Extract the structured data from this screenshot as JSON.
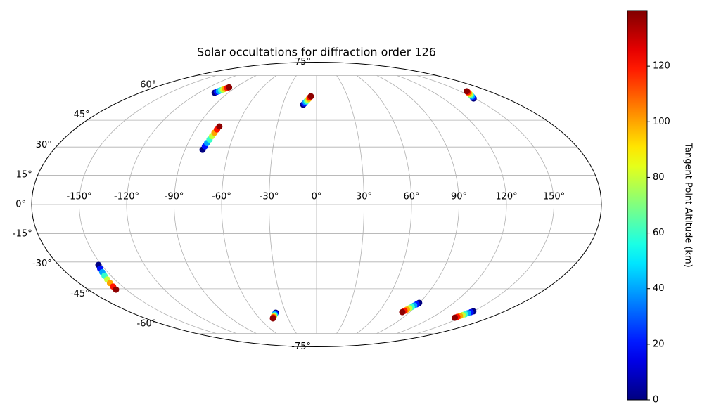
{
  "chart_data": {
    "type": "mollweide-scatter",
    "title": "Solar occultations for diffraction order 126",
    "xlim": [
      -180,
      180
    ],
    "ylim": [
      -90,
      90
    ],
    "xticks": [
      {
        "value": -150,
        "label": "-150°"
      },
      {
        "value": -120,
        "label": "-120°"
      },
      {
        "value": -90,
        "label": "-90°"
      },
      {
        "value": -60,
        "label": "-60°"
      },
      {
        "value": -30,
        "label": "-30°"
      },
      {
        "value": 0,
        "label": "0°"
      },
      {
        "value": 30,
        "label": "30°"
      },
      {
        "value": 60,
        "label": "60°"
      },
      {
        "value": 90,
        "label": "90°"
      },
      {
        "value": 120,
        "label": "120°"
      },
      {
        "value": 150,
        "label": "150°"
      }
    ],
    "yticks": [
      {
        "value": -75,
        "label": "-75°"
      },
      {
        "value": -60,
        "label": "-60°"
      },
      {
        "value": -45,
        "label": "-45°"
      },
      {
        "value": -30,
        "label": "-30°"
      },
      {
        "value": -15,
        "label": "-15°"
      },
      {
        "value": 0,
        "label": "0°"
      },
      {
        "value": 15,
        "label": "15°"
      },
      {
        "value": 30,
        "label": "30°"
      },
      {
        "value": 45,
        "label": "45°"
      },
      {
        "value": 60,
        "label": "60°"
      },
      {
        "value": 75,
        "label": "75°"
      }
    ],
    "grid": true,
    "colormap": "jet",
    "colorbar": {
      "label": "Tangent Point Altitude (km)",
      "clim": [
        0,
        140
      ],
      "ticks": [
        0,
        20,
        40,
        60,
        80,
        100,
        120
      ]
    },
    "tracks": [
      {
        "lon": [
          -104,
          -103.1,
          -102.1,
          -101.2,
          -100.2,
          -99.3,
          -98.3,
          -97.5
        ],
        "lat": [
          62.2,
          62.8,
          63.3,
          63.9,
          64.4,
          65.0,
          65.5,
          66.0
        ],
        "altitude": [
          0,
          20,
          40,
          60,
          80,
          100,
          120,
          138
        ]
      },
      {
        "lon": [
          -78.0,
          -77.3,
          -76.7,
          -76.0,
          -75.3,
          -74.7,
          -74.0,
          -73.4
        ],
        "lat": [
          28.5,
          30.4,
          32.2,
          34.1,
          36.0,
          37.9,
          39.7,
          41.4
        ],
        "altitude": [
          0,
          20,
          40,
          60,
          80,
          100,
          120,
          138
        ]
      },
      {
        "lon": [
          -11.8,
          -10.9,
          -10.0,
          -9.1,
          -8.1,
          -7.2,
          -6.3,
          -5.5
        ],
        "lat": [
          54.4,
          55.2,
          56.0,
          56.7,
          57.5,
          58.3,
          59.1,
          59.8
        ],
        "altitude": [
          0,
          20,
          40,
          60,
          80,
          100,
          120,
          138
        ]
      },
      {
        "lon": [
          148.8,
          149.9,
          151.1,
          152.2,
          153.4,
          154.5,
          155.7,
          156.7
        ],
        "lat": [
          58.4,
          59.1,
          59.8,
          60.5,
          61.2,
          61.9,
          62.6,
          63.2
        ],
        "altitude": [
          0,
          20,
          40,
          60,
          80,
          100,
          120,
          138
        ]
      },
      {
        "lon": [
          -152.2,
          -153.1,
          -153.9,
          -154.8,
          -155.6,
          -156.5,
          -157.3,
          -158.1
        ],
        "lat": [
          -31.6,
          -33.6,
          -35.6,
          -37.6,
          -39.7,
          -41.7,
          -43.7,
          -45.5
        ],
        "altitude": [
          0,
          20,
          40,
          60,
          80,
          100,
          120,
          138
        ]
      },
      {
        "lon": [
          -39.7,
          -40.6,
          -41.5,
          -42.4,
          -43.3,
          -44.2,
          -45.1,
          -45.9
        ],
        "lat": [
          -59.8,
          -60.4,
          -60.9,
          -61.5,
          -62.0,
          -62.6,
          -63.1,
          -63.6
        ],
        "altitude": [
          0,
          20,
          40,
          60,
          80,
          100,
          120,
          138
        ]
      },
      {
        "lon": [
          89.7,
          88.7,
          87.7,
          86.7,
          85.7,
          84.7,
          83.7,
          82.8
        ],
        "lat": [
          -53.5,
          -54.4,
          -55.2,
          -56.1,
          -56.9,
          -57.8,
          -58.6,
          -59.4
        ],
        "altitude": [
          0,
          20,
          40,
          60,
          80,
          100,
          120,
          138
        ]
      },
      {
        "lon": [
          149.9,
          149.1,
          148.2,
          147.4,
          146.6,
          145.8,
          144.9,
          144.2
        ],
        "lat": [
          -58.9,
          -59.5,
          -60.1,
          -60.8,
          -61.4,
          -62.0,
          -62.6,
          -63.2
        ],
        "altitude": [
          0,
          20,
          40,
          60,
          80,
          100,
          120,
          138
        ]
      }
    ]
  }
}
